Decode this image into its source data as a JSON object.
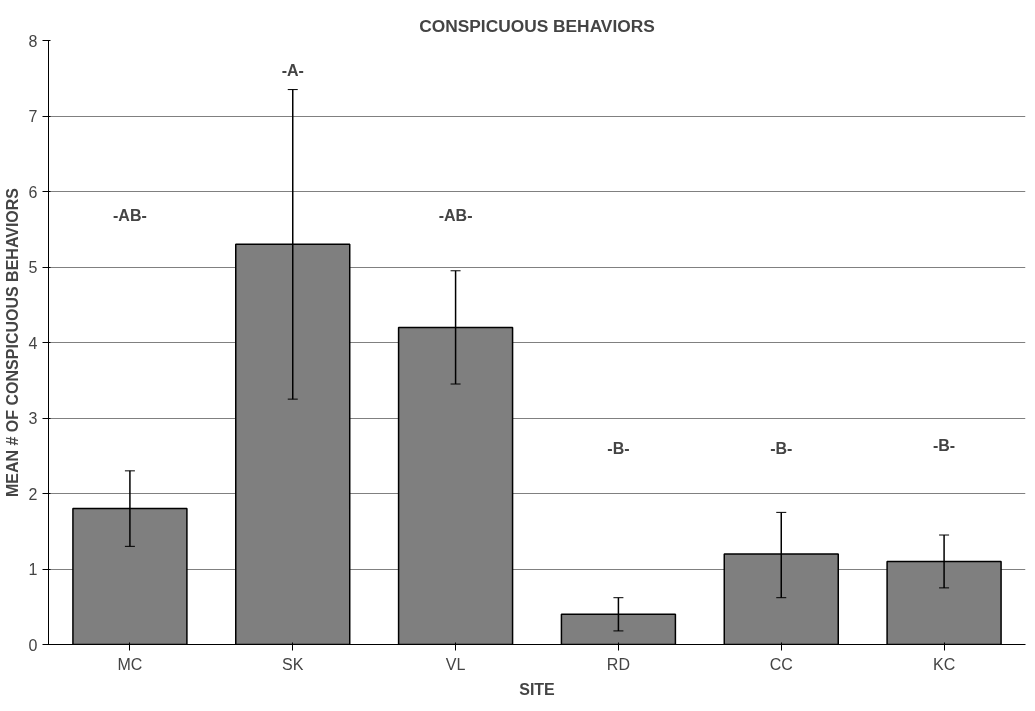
{
  "chart_data": {
    "type": "bar",
    "title": "CONSPICUOUS BEHAVIORS",
    "xlabel": "SITE",
    "ylabel": "MEAN # OF CONSPICUOUS BEHAVIORS",
    "categories": [
      "MC",
      "SK",
      "VL",
      "RD",
      "CC",
      "KC"
    ],
    "values": [
      1.8,
      5.3,
      4.2,
      0.4,
      1.2,
      1.1
    ],
    "errors": [
      [
        1.3,
        2.3
      ],
      [
        3.25,
        7.35
      ],
      [
        3.45,
        4.95
      ],
      [
        0.18,
        0.62
      ],
      [
        0.62,
        1.75
      ],
      [
        0.75,
        1.45
      ]
    ],
    "color": "#7f7f7f",
    "ylim": [
      0,
      8
    ],
    "yticks": [
      0,
      1,
      2,
      3,
      4,
      5,
      6,
      7,
      8
    ],
    "grid": "y",
    "annotations": [
      "-AB-",
      "-A-",
      "-AB-",
      "-B-",
      "-B-",
      "-B-"
    ]
  }
}
